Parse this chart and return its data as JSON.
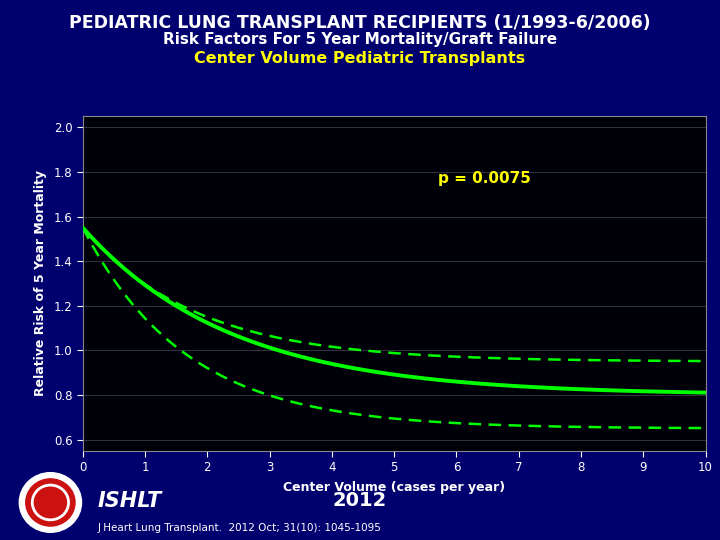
{
  "title_line1": "PEDIATRIC LUNG TRANSPLANT RECIPIENTS (1/1993-6/2006)",
  "title_line2": "Risk Factors For 5 Year Mortality/Graft Failure",
  "title_line3": "Center Volume Pediatric Transplants",
  "xlabel": "Center Volume (cases per year)",
  "ylabel": "Relative Risk of 5 Year Mortality",
  "xlim": [
    0,
    10
  ],
  "ylim": [
    0.55,
    2.05
  ],
  "xticks": [
    0,
    1,
    2,
    3,
    4,
    5,
    6,
    7,
    8,
    9,
    10
  ],
  "yticks": [
    0.6,
    0.8,
    1.0,
    1.2,
    1.4,
    1.6,
    1.8,
    2.0
  ],
  "bg_color": "#000008",
  "outer_bg": "#00006e",
  "title_color1": "#ffffff",
  "title_color2": "#ffffff",
  "title_color3": "#ffff00",
  "line_color": "#00ff00",
  "p_value_text": "p = 0.0075",
  "p_value_color": "#ffff00",
  "ishlt_text": "ISHLT",
  "year_text": "2012",
  "citation": "J Heart Lung Transplant.  2012 Oct; 31(10): 1045-1095",
  "axis_color": "#888888",
  "tick_color": "#ffffff",
  "grid_color": "#333344"
}
